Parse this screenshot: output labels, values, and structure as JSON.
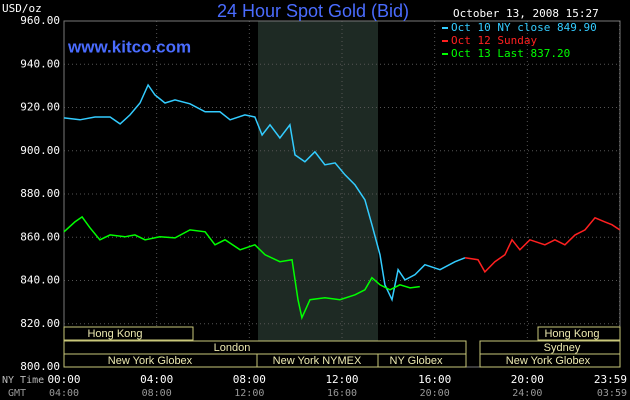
{
  "chart_data": {
    "type": "line",
    "title": "24 Hour Spot Gold (Bid)",
    "website": "www.kitco.com",
    "y_label": "USD/oz",
    "timestamp": "October 13, 2008 15:27",
    "x_row_labels": [
      "NY Time",
      "GMT"
    ],
    "xlim": [
      0,
      24
    ],
    "ylim": [
      800,
      960
    ],
    "xticks": [
      {
        "value": 0,
        "label": "00:00"
      },
      {
        "value": 4,
        "label": "04:00"
      },
      {
        "value": 8,
        "label": "08:00"
      },
      {
        "value": 12,
        "label": "12:00"
      },
      {
        "value": 16,
        "label": "16:00"
      },
      {
        "value": 20,
        "label": "20:00"
      },
      {
        "value": 23.98,
        "label": "23:59"
      }
    ],
    "gmt_labels": [
      "04:00",
      "08:00",
      "12:00",
      "16:00",
      "20:00",
      "24:00",
      "03:59"
    ],
    "yticks": [
      {
        "value": 800,
        "label": "800.00"
      },
      {
        "value": 820,
        "label": "820.00"
      },
      {
        "value": 840,
        "label": "840.00"
      },
      {
        "value": 860,
        "label": "860.00"
      },
      {
        "value": 880,
        "label": "880.00"
      },
      {
        "value": 900,
        "label": "900.00"
      },
      {
        "value": 920,
        "label": "920.00"
      },
      {
        "value": 940,
        "label": "940.00"
      },
      {
        "value": 960,
        "label": "960.00"
      }
    ],
    "grid": true,
    "sessions": [
      "Hong Kong",
      "London",
      "New York Globex",
      "New York NYMEX",
      "NY Globex",
      "Hong Kong",
      "Sydney",
      "New York Globex"
    ],
    "series": [
      {
        "name": "Oct 10 NY close 849.90",
        "color": "#33ccff",
        "x": [
          0,
          0.69,
          1.34,
          1.99,
          2.42,
          2.85,
          3.28,
          3.63,
          3.93,
          4.36,
          4.79,
          5.44,
          6.09,
          6.73,
          7.17,
          7.81,
          8.24,
          8.55,
          8.89,
          9.32,
          9.75,
          9.97,
          10.4,
          10.83,
          11.26,
          11.7,
          12.13,
          12.56,
          12.99,
          13.29,
          13.64,
          13.85,
          14.16,
          14.42,
          14.72,
          15.15,
          15.58,
          16.23,
          16.88,
          17.31
        ],
        "values": [
          915.2,
          914.3,
          915.6,
          915.6,
          912.4,
          916.6,
          922.1,
          930.4,
          925.8,
          922.1,
          923.5,
          921.7,
          918.0,
          918.0,
          914.3,
          916.6,
          915.6,
          907.3,
          912.0,
          905.9,
          912.0,
          898.1,
          894.9,
          899.5,
          893.5,
          894.4,
          888.9,
          884.2,
          877.3,
          865.8,
          851.9,
          838.0,
          831.1,
          845.0,
          840.3,
          842.7,
          847.3,
          845.0,
          848.7,
          850.5
        ]
      },
      {
        "name": "Oct 12 Sunday",
        "color": "#ff2020",
        "x": [
          17.31,
          17.87,
          18.17,
          18.6,
          19.03,
          19.34,
          19.68,
          20.11,
          20.76,
          21.19,
          21.62,
          22.06,
          22.49,
          22.92,
          23.35,
          23.65,
          23.99
        ],
        "values": [
          850.5,
          849.6,
          844.0,
          848.7,
          851.9,
          858.8,
          854.2,
          858.8,
          856.5,
          858.8,
          856.5,
          861.1,
          863.4,
          869.0,
          867.1,
          865.8,
          863.4
        ]
      },
      {
        "name": "Oct 13 Last 837.20",
        "color": "#00ff00",
        "x": [
          0,
          0.47,
          0.78,
          1.12,
          1.55,
          1.99,
          2.63,
          3.06,
          3.5,
          4.14,
          4.79,
          5.44,
          6.09,
          6.52,
          6.95,
          7.6,
          8.24,
          8.68,
          9.32,
          9.84,
          10.1,
          10.27,
          10.62,
          11.26,
          11.91,
          12.56,
          12.99,
          13.29,
          13.64,
          14.07,
          14.5,
          14.94,
          15.36
        ],
        "values": [
          862.5,
          867.1,
          869.4,
          864.4,
          858.8,
          861.1,
          860.2,
          861.1,
          858.8,
          860.2,
          859.7,
          863.4,
          862.5,
          856.5,
          858.8,
          854.2,
          856.5,
          851.9,
          848.7,
          849.6,
          831.1,
          822.8,
          831.1,
          832.0,
          831.1,
          833.4,
          835.7,
          841.3,
          838.0,
          835.7,
          838.0,
          836.6,
          837.2
        ]
      }
    ]
  }
}
